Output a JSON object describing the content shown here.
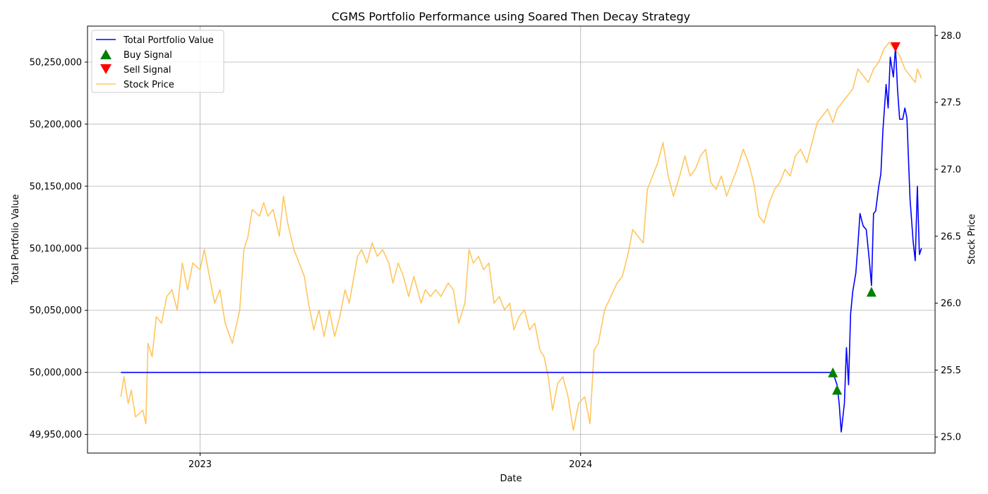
{
  "chart_data": {
    "type": "line",
    "title": "CGMS Portfolio Performance using Soared Then Decay Strategy",
    "xlabel": "Date",
    "ylabel_left": "Total Portfolio Value",
    "ylabel_right": "Stock Price",
    "x_range": [
      "2022-09-15",
      "2024-12-06"
    ],
    "x_ticks": [
      {
        "date": "2023-01-01",
        "label": "2023"
      },
      {
        "date": "2024-01-01",
        "label": "2024"
      }
    ],
    "y_left_range": [
      49935000,
      50279000
    ],
    "y_left_ticks": [
      49950000,
      50000000,
      50050000,
      50100000,
      50150000,
      50200000,
      50250000
    ],
    "y_left_tick_labels": [
      "49,950,000",
      "50,000,000",
      "50,050,000",
      "50,100,000",
      "50,150,000",
      "50,200,000",
      "50,250,000"
    ],
    "y_right_range": [
      24.88,
      28.07
    ],
    "y_right_ticks": [
      25.0,
      25.5,
      26.0,
      26.5,
      27.0,
      27.5,
      28.0
    ],
    "y_right_tick_labels": [
      "25.0",
      "25.5",
      "26.0",
      "26.5",
      "27.0",
      "27.5",
      "28.0"
    ],
    "grid": true,
    "legend_position": "top-left",
    "legend": [
      "Total Portfolio Value",
      "Buy Signal",
      "Sell Signal",
      "Stock Price"
    ],
    "colors": {
      "portfolio": "#0000ff",
      "buy": "#008000",
      "sell": "#ff0000",
      "stock": "#ffc65f"
    },
    "series": [
      {
        "name": "Total Portfolio Value",
        "axis": "left",
        "points": [
          [
            "2022-10-17",
            50000000
          ],
          [
            "2024-08-30",
            50000000
          ],
          [
            "2024-09-03",
            49990000
          ],
          [
            "2024-09-05",
            49975000
          ],
          [
            "2024-09-07",
            49952000
          ],
          [
            "2024-09-10",
            49975000
          ],
          [
            "2024-09-12",
            50020000
          ],
          [
            "2024-09-14",
            49990000
          ],
          [
            "2024-09-16",
            50047000
          ],
          [
            "2024-09-18",
            50065000
          ],
          [
            "2024-09-21",
            50080000
          ],
          [
            "2024-09-23",
            50103000
          ],
          [
            "2024-09-25",
            50128000
          ],
          [
            "2024-09-28",
            50118000
          ],
          [
            "2024-10-01",
            50115000
          ],
          [
            "2024-10-04",
            50090000
          ],
          [
            "2024-10-06",
            50070000
          ],
          [
            "2024-10-08",
            50128000
          ],
          [
            "2024-10-10",
            50130000
          ],
          [
            "2024-10-13",
            50150000
          ],
          [
            "2024-10-15",
            50160000
          ],
          [
            "2024-10-17",
            50195000
          ],
          [
            "2024-10-20",
            50232000
          ],
          [
            "2024-10-22",
            50213000
          ],
          [
            "2024-10-24",
            50254000
          ],
          [
            "2024-10-27",
            50238000
          ],
          [
            "2024-10-29",
            50262000
          ],
          [
            "2024-10-31",
            50228000
          ],
          [
            "2024-11-02",
            50204000
          ],
          [
            "2024-11-05",
            50204000
          ],
          [
            "2024-11-07",
            50213000
          ],
          [
            "2024-11-09",
            50205000
          ],
          [
            "2024-11-12",
            50140000
          ],
          [
            "2024-11-15",
            50105000
          ],
          [
            "2024-11-17",
            50090000
          ],
          [
            "2024-11-19",
            50150000
          ],
          [
            "2024-11-21",
            50095000
          ],
          [
            "2024-11-23",
            50100000
          ]
        ]
      },
      {
        "name": "Stock Price",
        "axis": "right",
        "points": [
          [
            "2022-10-17",
            25.3
          ],
          [
            "2022-10-20",
            25.45
          ],
          [
            "2022-10-24",
            25.25
          ],
          [
            "2022-10-27",
            25.35
          ],
          [
            "2022-10-31",
            25.15
          ],
          [
            "2022-11-07",
            25.2
          ],
          [
            "2022-11-10",
            25.1
          ],
          [
            "2022-11-12",
            25.7
          ],
          [
            "2022-11-16",
            25.6
          ],
          [
            "2022-11-20",
            25.9
          ],
          [
            "2022-11-25",
            25.85
          ],
          [
            "2022-11-30",
            26.05
          ],
          [
            "2022-12-05",
            26.1
          ],
          [
            "2022-12-10",
            25.95
          ],
          [
            "2022-12-15",
            26.3
          ],
          [
            "2022-12-20",
            26.1
          ],
          [
            "2022-12-25",
            26.3
          ],
          [
            "2023-01-01",
            26.25
          ],
          [
            "2023-01-05",
            26.4
          ],
          [
            "2023-01-10",
            26.2
          ],
          [
            "2023-01-15",
            26.0
          ],
          [
            "2023-01-20",
            26.1
          ],
          [
            "2023-01-25",
            25.85
          ],
          [
            "2023-02-01",
            25.7
          ],
          [
            "2023-02-08",
            25.95
          ],
          [
            "2023-02-12",
            26.4
          ],
          [
            "2023-02-16",
            26.5
          ],
          [
            "2023-02-20",
            26.7
          ],
          [
            "2023-02-27",
            26.65
          ],
          [
            "2023-03-03",
            26.75
          ],
          [
            "2023-03-07",
            26.65
          ],
          [
            "2023-03-12",
            26.7
          ],
          [
            "2023-03-18",
            26.5
          ],
          [
            "2023-03-22",
            26.8
          ],
          [
            "2023-03-26",
            26.6
          ],
          [
            "2023-04-01",
            26.4
          ],
          [
            "2023-04-06",
            26.3
          ],
          [
            "2023-04-11",
            26.2
          ],
          [
            "2023-04-15",
            26.0
          ],
          [
            "2023-04-20",
            25.8
          ],
          [
            "2023-04-25",
            25.95
          ],
          [
            "2023-04-30",
            25.75
          ],
          [
            "2023-05-05",
            25.95
          ],
          [
            "2023-05-10",
            25.75
          ],
          [
            "2023-05-15",
            25.9
          ],
          [
            "2023-05-20",
            26.1
          ],
          [
            "2023-05-24",
            26.0
          ],
          [
            "2023-06-01",
            26.35
          ],
          [
            "2023-06-05",
            26.4
          ],
          [
            "2023-06-10",
            26.3
          ],
          [
            "2023-06-15",
            26.45
          ],
          [
            "2023-06-20",
            26.35
          ],
          [
            "2023-06-25",
            26.4
          ],
          [
            "2023-07-01",
            26.3
          ],
          [
            "2023-07-05",
            26.15
          ],
          [
            "2023-07-10",
            26.3
          ],
          [
            "2023-07-15",
            26.2
          ],
          [
            "2023-07-20",
            26.05
          ],
          [
            "2023-07-25",
            26.2
          ],
          [
            "2023-08-01",
            26.0
          ],
          [
            "2023-08-05",
            26.1
          ],
          [
            "2023-08-10",
            26.05
          ],
          [
            "2023-08-15",
            26.1
          ],
          [
            "2023-08-20",
            26.05
          ],
          [
            "2023-08-27",
            26.15
          ],
          [
            "2023-09-01",
            26.1
          ],
          [
            "2023-09-06",
            25.85
          ],
          [
            "2023-09-12",
            26.0
          ],
          [
            "2023-09-16",
            26.4
          ],
          [
            "2023-09-20",
            26.3
          ],
          [
            "2023-09-25",
            26.35
          ],
          [
            "2023-09-30",
            26.25
          ],
          [
            "2023-10-05",
            26.3
          ],
          [
            "2023-10-10",
            26.0
          ],
          [
            "2023-10-15",
            26.05
          ],
          [
            "2023-10-20",
            25.95
          ],
          [
            "2023-10-25",
            26.0
          ],
          [
            "2023-10-29",
            25.8
          ],
          [
            "2023-11-03",
            25.9
          ],
          [
            "2023-11-08",
            25.95
          ],
          [
            "2023-11-13",
            25.8
          ],
          [
            "2023-11-18",
            25.85
          ],
          [
            "2023-11-23",
            25.65
          ],
          [
            "2023-11-27",
            25.6
          ],
          [
            "2023-12-01",
            25.45
          ],
          [
            "2023-12-05",
            25.2
          ],
          [
            "2023-12-10",
            25.4
          ],
          [
            "2023-12-15",
            25.45
          ],
          [
            "2023-12-20",
            25.3
          ],
          [
            "2023-12-25",
            25.05
          ],
          [
            "2023-12-30",
            25.25
          ],
          [
            "2024-01-05",
            25.3
          ],
          [
            "2024-01-10",
            25.1
          ],
          [
            "2024-01-14",
            25.65
          ],
          [
            "2024-01-18",
            25.7
          ],
          [
            "2024-01-24",
            25.95
          ],
          [
            "2024-01-30",
            26.05
          ],
          [
            "2024-02-05",
            26.15
          ],
          [
            "2024-02-10",
            26.2
          ],
          [
            "2024-02-15",
            26.35
          ],
          [
            "2024-02-20",
            26.55
          ],
          [
            "2024-02-25",
            26.5
          ],
          [
            "2024-03-01",
            26.45
          ],
          [
            "2024-03-05",
            26.85
          ],
          [
            "2024-03-10",
            26.95
          ],
          [
            "2024-03-15",
            27.05
          ],
          [
            "2024-03-20",
            27.2
          ],
          [
            "2024-03-25",
            26.95
          ],
          [
            "2024-03-30",
            26.8
          ],
          [
            "2024-04-05",
            26.95
          ],
          [
            "2024-04-10",
            27.1
          ],
          [
            "2024-04-15",
            26.95
          ],
          [
            "2024-04-20",
            27.0
          ],
          [
            "2024-04-25",
            27.1
          ],
          [
            "2024-04-30",
            27.15
          ],
          [
            "2024-05-05",
            26.9
          ],
          [
            "2024-05-10",
            26.85
          ],
          [
            "2024-05-15",
            26.95
          ],
          [
            "2024-05-20",
            26.8
          ],
          [
            "2024-05-25",
            26.9
          ],
          [
            "2024-05-30",
            27.0
          ],
          [
            "2024-06-05",
            27.15
          ],
          [
            "2024-06-10",
            27.05
          ],
          [
            "2024-06-15",
            26.9
          ],
          [
            "2024-06-20",
            26.65
          ],
          [
            "2024-06-25",
            26.6
          ],
          [
            "2024-06-30",
            26.75
          ],
          [
            "2024-07-05",
            26.85
          ],
          [
            "2024-07-10",
            26.9
          ],
          [
            "2024-07-15",
            27.0
          ],
          [
            "2024-07-20",
            26.95
          ],
          [
            "2024-07-25",
            27.1
          ],
          [
            "2024-07-30",
            27.15
          ],
          [
            "2024-08-05",
            27.05
          ],
          [
            "2024-08-10",
            27.2
          ],
          [
            "2024-08-15",
            27.35
          ],
          [
            "2024-08-20",
            27.4
          ],
          [
            "2024-08-25",
            27.45
          ],
          [
            "2024-08-30",
            27.35
          ],
          [
            "2024-09-03",
            27.45
          ],
          [
            "2024-09-08",
            27.5
          ],
          [
            "2024-09-13",
            27.55
          ],
          [
            "2024-09-18",
            27.6
          ],
          [
            "2024-09-23",
            27.75
          ],
          [
            "2024-09-28",
            27.7
          ],
          [
            "2024-10-03",
            27.65
          ],
          [
            "2024-10-08",
            27.75
          ],
          [
            "2024-10-13",
            27.8
          ],
          [
            "2024-10-18",
            27.9
          ],
          [
            "2024-10-23",
            27.95
          ],
          [
            "2024-10-28",
            27.9
          ],
          [
            "2024-11-02",
            27.85
          ],
          [
            "2024-11-07",
            27.75
          ],
          [
            "2024-11-12",
            27.7
          ],
          [
            "2024-11-17",
            27.65
          ],
          [
            "2024-11-19",
            27.75
          ],
          [
            "2024-11-23",
            27.68
          ]
        ]
      }
    ],
    "buy_signals": [
      [
        "2024-08-30",
        50000000
      ],
      [
        "2024-09-03",
        49986000
      ],
      [
        "2024-10-06",
        50065000
      ]
    ],
    "sell_signals": [
      [
        "2024-10-29",
        50262000
      ]
    ]
  }
}
